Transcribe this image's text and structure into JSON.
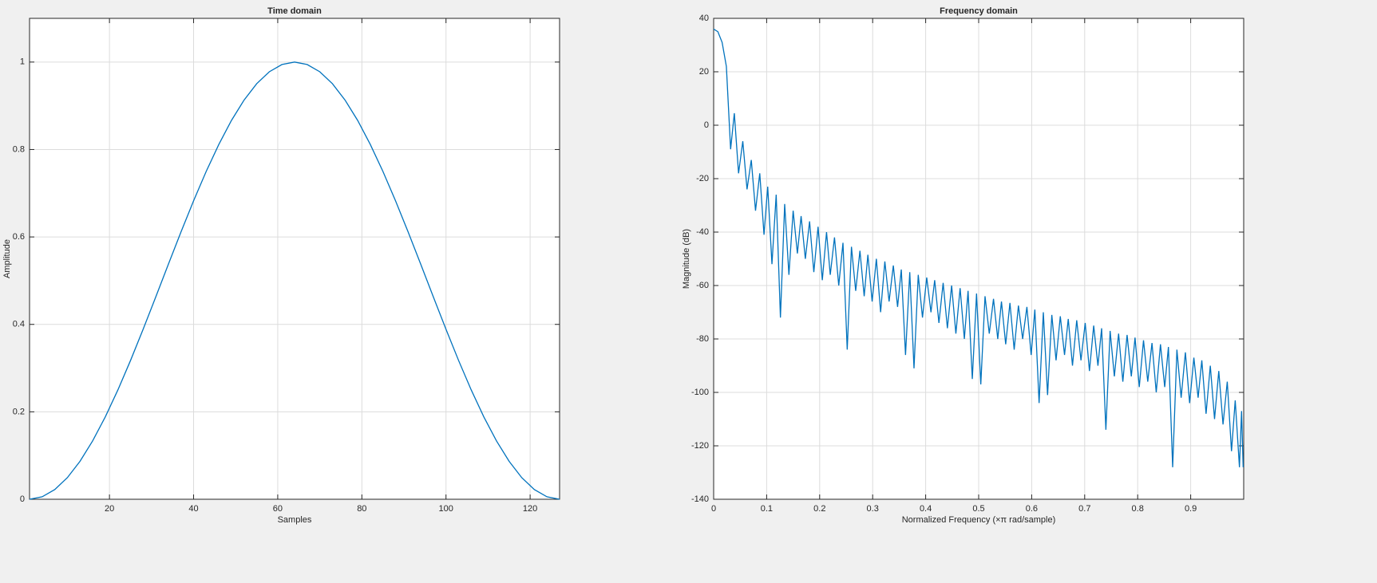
{
  "chart_data": [
    {
      "type": "line",
      "title": "Time domain",
      "xlabel": "Samples",
      "ylabel": "Amplitude",
      "x": [
        1,
        4,
        7,
        10,
        13,
        16,
        19,
        22,
        25,
        28,
        31,
        34,
        37,
        40,
        43,
        46,
        49,
        52,
        55,
        58,
        61,
        64,
        67,
        70,
        73,
        76,
        79,
        82,
        85,
        88,
        91,
        94,
        97,
        100,
        103,
        106,
        109,
        112,
        115,
        118,
        121,
        124,
        127
      ],
      "series": [
        {
          "color": "#0072bd",
          "values": [
            0,
            0.0056,
            0.0222,
            0.0495,
            0.0869,
            0.1335,
            0.1883,
            0.25,
            0.3173,
            0.3887,
            0.4626,
            0.5374,
            0.6113,
            0.6827,
            0.75,
            0.8117,
            0.8665,
            0.9131,
            0.9505,
            0.9778,
            0.9944,
            1,
            0.9944,
            0.9778,
            0.9505,
            0.9131,
            0.8665,
            0.8117,
            0.75,
            0.6827,
            0.6113,
            0.5374,
            0.4626,
            0.3887,
            0.3173,
            0.25,
            0.1883,
            0.1335,
            0.0869,
            0.0495,
            0.0222,
            0.0056,
            0
          ]
        }
      ],
      "xlim": [
        1,
        127
      ],
      "xticks": [
        20,
        40,
        60,
        80,
        100,
        120
      ],
      "ylim": [
        0,
        1.1
      ],
      "yticks": [
        0,
        0.2,
        0.4,
        0.6,
        0.8,
        1
      ],
      "grid": true
    },
    {
      "type": "line",
      "title": "Frequency domain",
      "xlabel": "Normalized Frequency  (×π rad/sample)",
      "ylabel": "Magnitude (dB)",
      "x": [
        0,
        0.008,
        0.016,
        0.024,
        0.032,
        0.039,
        0.047,
        0.055,
        0.063,
        0.071,
        0.079,
        0.087,
        0.095,
        0.102,
        0.11,
        0.118,
        0.126,
        0.134,
        0.142,
        0.15,
        0.158,
        0.165,
        0.173,
        0.181,
        0.189,
        0.197,
        0.205,
        0.213,
        0.22,
        0.228,
        0.236,
        0.244,
        0.252,
        0.26,
        0.268,
        0.276,
        0.284,
        0.291,
        0.299,
        0.307,
        0.315,
        0.323,
        0.331,
        0.339,
        0.347,
        0.354,
        0.362,
        0.37,
        0.378,
        0.386,
        0.394,
        0.402,
        0.41,
        0.417,
        0.425,
        0.433,
        0.441,
        0.449,
        0.457,
        0.465,
        0.473,
        0.48,
        0.488,
        0.496,
        0.504,
        0.512,
        0.52,
        0.528,
        0.536,
        0.543,
        0.551,
        0.559,
        0.567,
        0.575,
        0.583,
        0.591,
        0.599,
        0.606,
        0.614,
        0.622,
        0.63,
        0.638,
        0.646,
        0.654,
        0.662,
        0.669,
        0.677,
        0.685,
        0.693,
        0.701,
        0.709,
        0.717,
        0.725,
        0.732,
        0.74,
        0.748,
        0.756,
        0.764,
        0.772,
        0.78,
        0.788,
        0.795,
        0.803,
        0.811,
        0.819,
        0.827,
        0.835,
        0.843,
        0.851,
        0.858,
        0.866,
        0.874,
        0.882,
        0.89,
        0.898,
        0.906,
        0.914,
        0.921,
        0.929,
        0.937,
        0.945,
        0.953,
        0.961,
        0.969,
        0.977,
        0.984,
        0.992,
        0.996,
        0.999
      ],
      "series": [
        {
          "color": "#0072bd",
          "values": [
            36,
            35,
            31,
            22,
            -9,
            4.5,
            -18,
            -6,
            -24,
            -13,
            -32,
            -18,
            -41,
            -23,
            -52,
            -26,
            -72,
            -29.5,
            -56,
            -32,
            -48,
            -34,
            -50,
            -36,
            -55,
            -38,
            -58,
            -40,
            -56,
            -42,
            -60,
            -44,
            -84,
            -45.5,
            -62,
            -47,
            -64,
            -48.5,
            -66,
            -50,
            -70,
            -51,
            -66,
            -52.5,
            -68,
            -54,
            -86,
            -55,
            -91,
            -56,
            -72,
            -57,
            -70,
            -58,
            -74,
            -59,
            -76,
            -60,
            -78,
            -61,
            -80,
            -62,
            -95,
            -63,
            -97,
            -64,
            -78,
            -65,
            -80,
            -66,
            -82,
            -66.5,
            -84,
            -67.5,
            -80,
            -68,
            -86,
            -69,
            -104,
            -70,
            -101,
            -71,
            -88,
            -71.5,
            -86,
            -72.5,
            -90,
            -73,
            -88,
            -74,
            -92,
            -75,
            -90,
            -76,
            -114,
            -77,
            -94,
            -78,
            -96,
            -78.5,
            -94,
            -79.5,
            -98,
            -80.5,
            -96,
            -81.5,
            -100,
            -82,
            -98,
            -83,
            -128,
            -84,
            -102,
            -85,
            -104,
            -87,
            -102,
            -88,
            -108,
            -90,
            -110,
            -92,
            -112,
            -96,
            -122,
            -103,
            -128,
            -107,
            -128
          ]
        }
      ],
      "xlim": [
        0,
        1
      ],
      "xticks": [
        0,
        0.1,
        0.2,
        0.3,
        0.4,
        0.5,
        0.6,
        0.7,
        0.8,
        0.9
      ],
      "ylim": [
        -140,
        40
      ],
      "yticks": [
        -140,
        -120,
        -100,
        -80,
        -60,
        -40,
        -20,
        0,
        20,
        40
      ],
      "grid": true
    }
  ]
}
